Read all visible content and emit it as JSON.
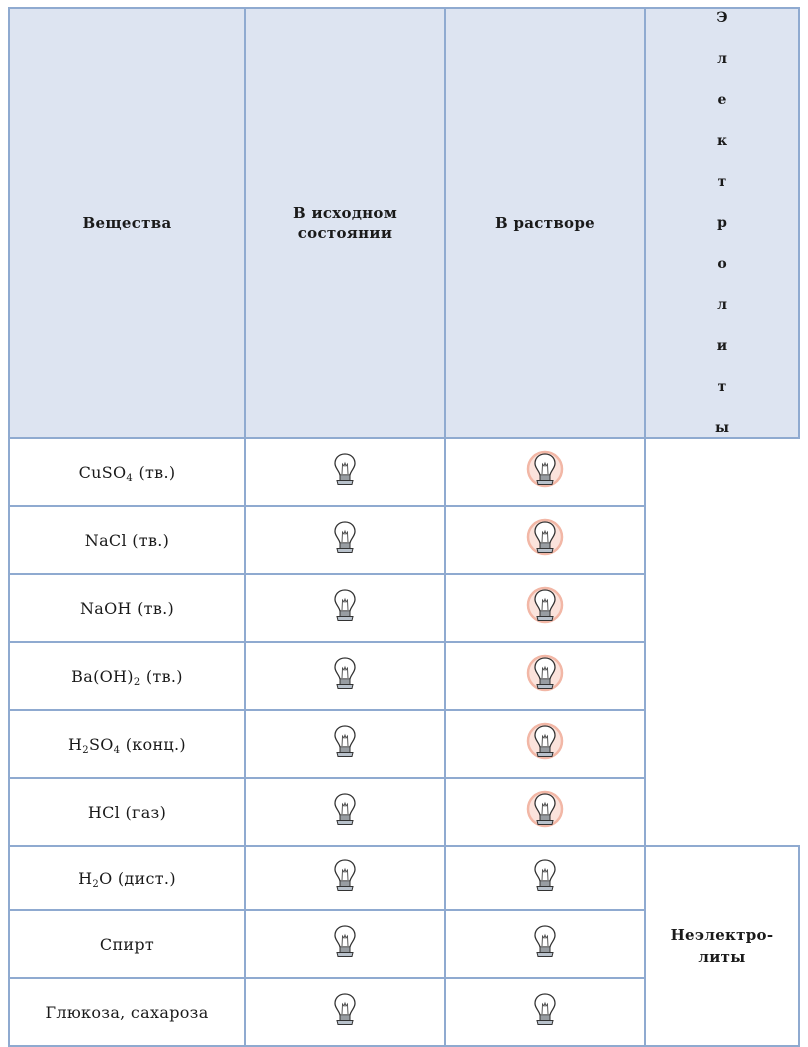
{
  "table": {
    "headers": {
      "substance": "Вещества",
      "initial_line1": "В исходном",
      "initial_line2": "состоянии",
      "solution": "В растворе"
    },
    "categories": {
      "electrolytes_letters": [
        "Э",
        "л",
        "е",
        "к",
        "т",
        "р",
        "о",
        "л",
        "и",
        "т",
        "ы"
      ],
      "nonelectrolytes_line1": "Неэлектро-",
      "nonelectrolytes_line2": "литы"
    },
    "rows": [
      {
        "pre": "CuSO",
        "sub1": "4",
        "mid": "",
        "sub2": "",
        "post": " (тв.)",
        "initial": "off",
        "solution": "on",
        "group": "electrolyte"
      },
      {
        "pre": "NaCl (тв.)",
        "sub1": "",
        "mid": "",
        "sub2": "",
        "post": "",
        "initial": "off",
        "solution": "on",
        "group": "electrolyte"
      },
      {
        "pre": "NaOH (тв.)",
        "sub1": "",
        "mid": "",
        "sub2": "",
        "post": "",
        "initial": "off",
        "solution": "on",
        "group": "electrolyte"
      },
      {
        "pre": "Ba(OH)",
        "sub1": "2",
        "mid": "",
        "sub2": "",
        "post": " (тв.)",
        "initial": "off",
        "solution": "on",
        "group": "electrolyte"
      },
      {
        "pre": "H",
        "sub1": "2",
        "mid": "SO",
        "sub2": "4",
        "post": " (конц.)",
        "initial": "off",
        "solution": "on",
        "group": "electrolyte"
      },
      {
        "pre": "HCl (газ)",
        "sub1": "",
        "mid": "",
        "sub2": "",
        "post": "",
        "initial": "off",
        "solution": "on",
        "group": "electrolyte"
      },
      {
        "pre": "H",
        "sub1": "2",
        "mid": "O (дист.)",
        "sub2": "",
        "post": "",
        "initial": "off",
        "solution": "off",
        "group": "nonelectrolyte"
      },
      {
        "pre": "Спирт",
        "sub1": "",
        "mid": "",
        "sub2": "",
        "post": "",
        "initial": "off",
        "solution": "off",
        "group": "nonelectrolyte"
      },
      {
        "pre": "Глюкоза, сахароза",
        "sub1": "",
        "mid": "",
        "sub2": "",
        "post": "",
        "initial": "off",
        "solution": "off",
        "group": "nonelectrolyte"
      }
    ]
  },
  "colors": {
    "border": "#8faad0",
    "header_bg": "#dde4f1",
    "glow": "#f6c1b4",
    "bulb_stroke": "#333333"
  },
  "icons": {
    "lamp_off": "light-bulb-off-icon",
    "lamp_on": "light-bulb-on-icon"
  }
}
